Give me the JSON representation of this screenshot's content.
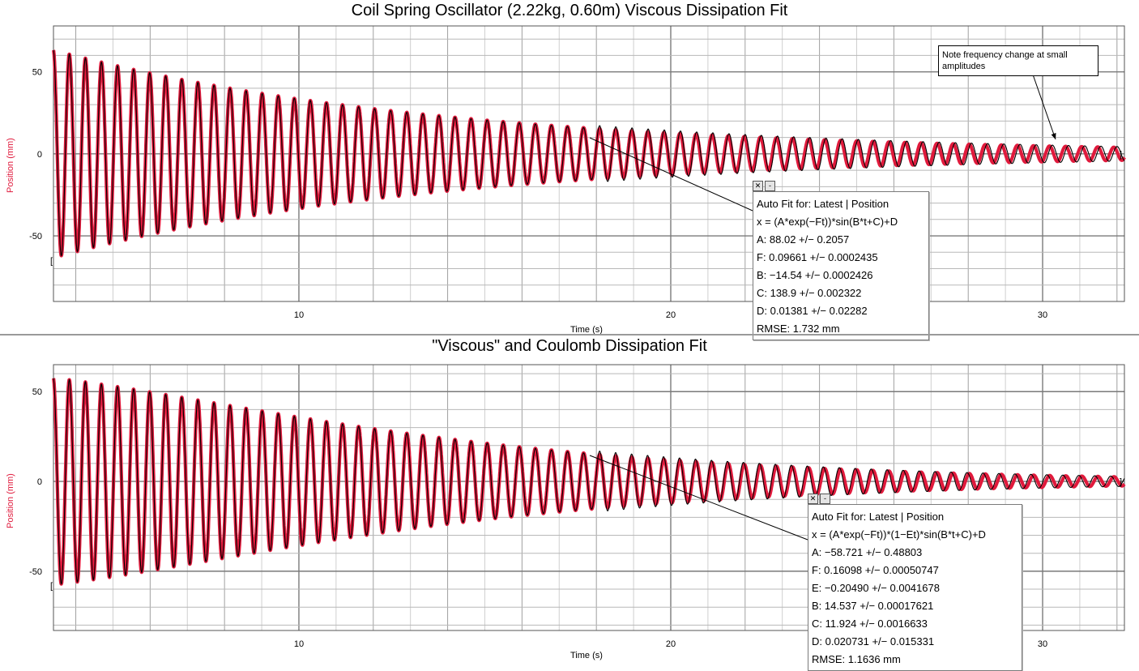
{
  "chart_data": [
    {
      "type": "line",
      "title": "Coil Spring Oscillator (2.22kg, 0.60m) Viscous Dissipation Fit",
      "xlabel": "Time (s)",
      "ylabel": "Position (mm)",
      "xlim": [
        3.4,
        32.2
      ],
      "ylim": [
        -90,
        78
      ],
      "xticks": [
        10,
        20,
        30
      ],
      "yticks": [
        -50,
        0,
        50
      ],
      "grid": true,
      "series": [
        {
          "role": "measured data",
          "color": "#000000"
        },
        {
          "role": "fit curve",
          "color": "#e01a3c"
        }
      ],
      "fit": {
        "label": "Auto Fit for: Latest | Position",
        "equation": "x = (A*exp(−Ft))*sin(B*t+C)+D",
        "params": [
          "A: 88.02 +/− 0.2057",
          "F: 0.09661 +/− 0.0002435",
          "B: −14.54 +/− 0.0002426",
          "C: 138.9 +/− 0.002322",
          "D: 0.01381 +/− 0.02282",
          "RMSE: 1.732 mm"
        ],
        "A": 88.02,
        "F": 0.09661,
        "B": -14.54,
        "C": 138.9,
        "D": 0.01381
      },
      "annotation": "Note frequency change at small amplitudes",
      "buttons": {
        "close": "✕",
        "minimize": "-"
      }
    },
    {
      "type": "line",
      "title": "\"Viscous\" and Coulomb Dissipation Fit",
      "xlabel": "Time (s)",
      "ylabel": "Position (mm)",
      "xlim": [
        3.4,
        32.2
      ],
      "ylim": [
        -83,
        65
      ],
      "xticks": [
        10,
        20,
        30
      ],
      "yticks": [
        -50,
        0,
        50
      ],
      "grid": true,
      "series": [
        {
          "role": "measured data",
          "color": "#000000"
        },
        {
          "role": "fit curve",
          "color": "#e01a3c"
        }
      ],
      "fit": {
        "label": "Auto Fit for: Latest | Position",
        "equation": "x = (A*exp(−Ft))*(1−Et)*sin(B*t+C)+D",
        "params": [
          "A: −58.721 +/− 0.48803",
          "F: 0.16098 +/− 0.00050747",
          "E: −0.20490 +/− 0.0041678",
          "B: 14.537 +/− 0.00017621",
          "C: 11.924 +/− 0.0016633",
          "D: 0.020731 +/− 0.015331",
          "RMSE: 1.1636 mm"
        ],
        "A": -58.721,
        "F": 0.16098,
        "E": -0.2049,
        "B": 14.537,
        "C": 11.924,
        "D": 0.020731
      },
      "buttons": {
        "close": "✕",
        "minimize": "-"
      }
    }
  ]
}
